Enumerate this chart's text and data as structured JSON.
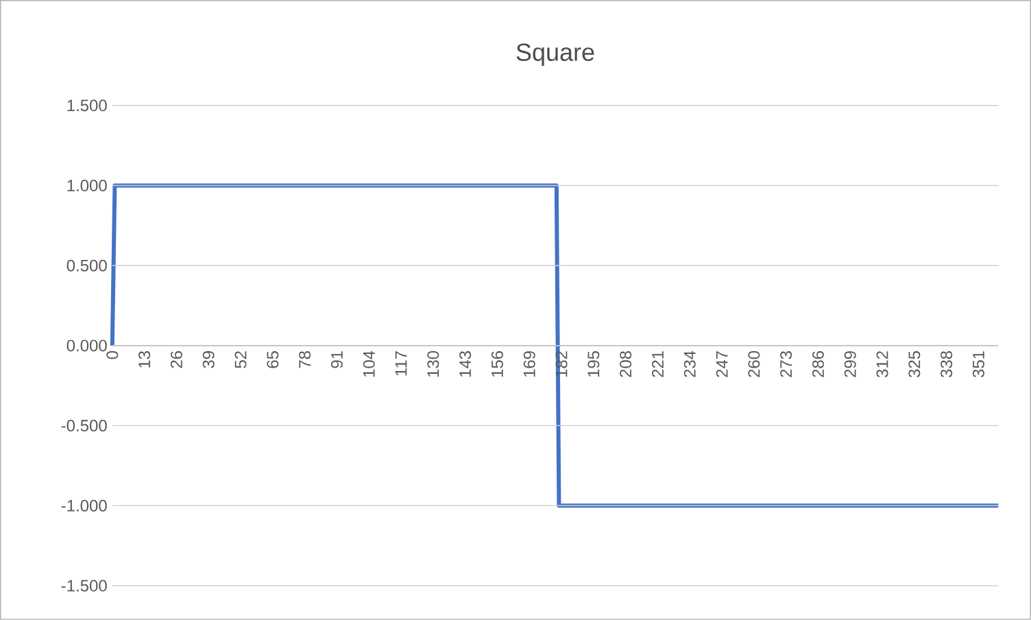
{
  "chart_data": {
    "type": "line",
    "title": "Square",
    "x": [
      0,
      1,
      180,
      181,
      359
    ],
    "values": [
      0,
      1,
      1,
      -1,
      -1
    ],
    "color": "#4472c4",
    "xlim": [
      0,
      359
    ],
    "xticks": [
      0,
      13,
      26,
      39,
      52,
      65,
      78,
      91,
      104,
      117,
      130,
      143,
      156,
      169,
      182,
      195,
      208,
      221,
      234,
      247,
      260,
      273,
      286,
      299,
      312,
      325,
      338,
      351
    ],
    "ylim": [
      -1.5,
      1.5
    ],
    "yticks": [
      {
        "value": -1.5,
        "label": "-1.500"
      },
      {
        "value": -1.0,
        "label": "-1.000"
      },
      {
        "value": -0.5,
        "label": "-0.500"
      },
      {
        "value": 0,
        "label": "0.000"
      },
      {
        "value": 0.5,
        "label": "0.500"
      },
      {
        "value": 1.0,
        "label": "1.000"
      },
      {
        "value": 1.5,
        "label": "1.500"
      }
    ],
    "grid": "y"
  }
}
